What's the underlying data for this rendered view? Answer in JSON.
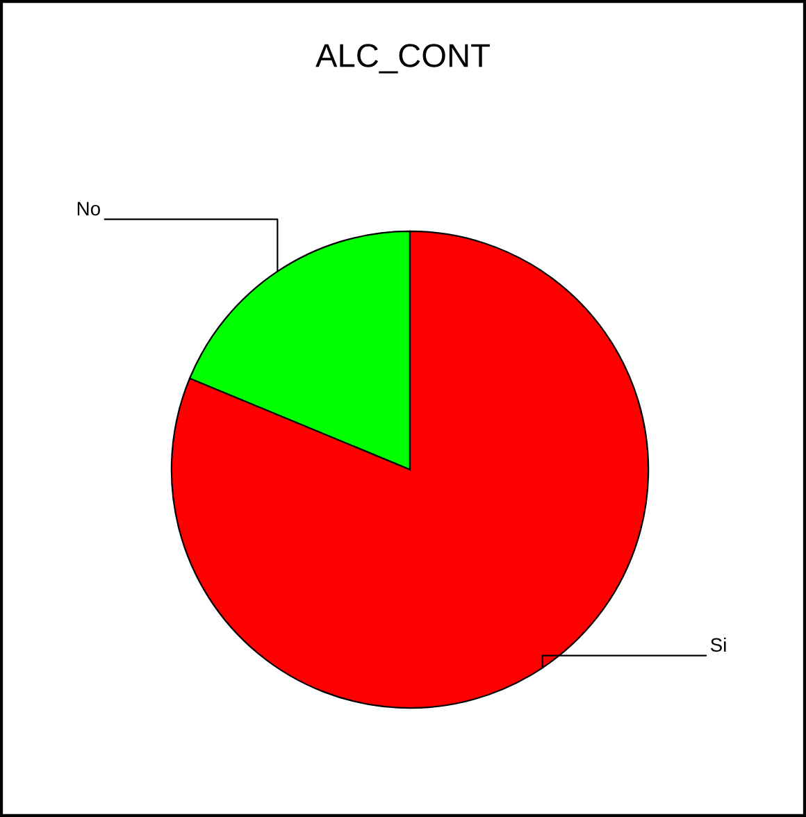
{
  "chart_data": {
    "type": "pie",
    "title": "ALC_CONT",
    "categories": [
      "No",
      "Si"
    ],
    "values": [
      18.75,
      81.25
    ],
    "colors": [
      "#00ff00",
      "#ff0000"
    ]
  }
}
